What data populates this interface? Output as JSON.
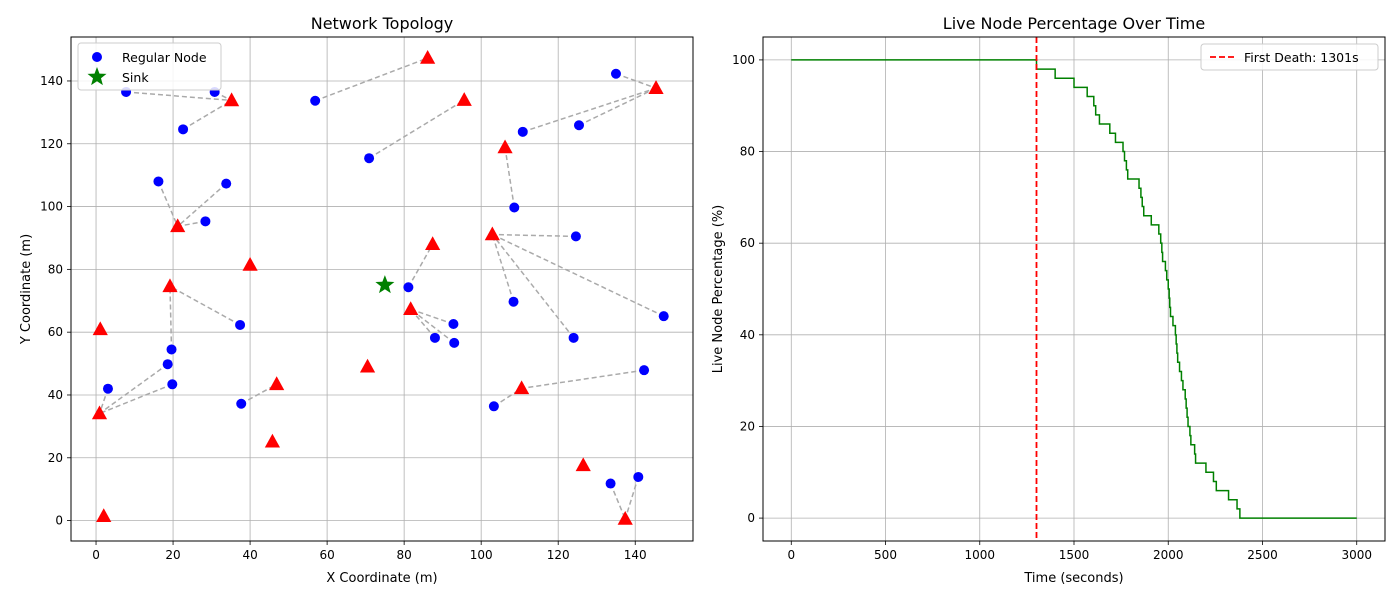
{
  "chart_data": [
    {
      "type": "scatter",
      "title": "Network Topology",
      "xlabel": "X Coordinate (m)",
      "ylabel": "Y Coordinate (m)",
      "xlim": [
        -6.5,
        155
      ],
      "ylim": [
        -6.5,
        154
      ],
      "xticks": [
        0,
        20,
        40,
        60,
        80,
        100,
        120,
        140
      ],
      "yticks": [
        0,
        20,
        40,
        60,
        80,
        100,
        120,
        140
      ],
      "grid": true,
      "legend_position": "top-left",
      "colors": {
        "regular": "#0000ff",
        "cluster_head": "#ff0000",
        "sink": "#008000",
        "link": "#aaaaaa"
      },
      "series": [
        {
          "name": "Regular Node",
          "marker": "circle",
          "points": [
            [
              7.8,
              136.5
            ],
            [
              30.8,
              136.5
            ],
            [
              22.6,
              124.6
            ],
            [
              56.9,
              133.7
            ],
            [
              16.2,
              108.0
            ],
            [
              33.8,
              107.3
            ],
            [
              28.4,
              95.3
            ],
            [
              70.9,
              115.4
            ],
            [
              110.8,
              123.8
            ],
            [
              125.4,
              125.9
            ],
            [
              135.0,
              142.3
            ],
            [
              108.6,
              99.7
            ],
            [
              124.6,
              90.5
            ],
            [
              81.1,
              74.3
            ],
            [
              108.4,
              69.7
            ],
            [
              147.4,
              65.1
            ],
            [
              92.8,
              62.6
            ],
            [
              88.0,
              58.2
            ],
            [
              93.0,
              56.6
            ],
            [
              124.0,
              58.2
            ],
            [
              37.4,
              62.3
            ],
            [
              19.6,
              54.5
            ],
            [
              18.6,
              49.8
            ],
            [
              19.8,
              43.4
            ],
            [
              3.1,
              42.0
            ],
            [
              37.7,
              37.2
            ],
            [
              103.3,
              36.4
            ],
            [
              142.3,
              47.9
            ],
            [
              133.6,
              11.8
            ],
            [
              140.8,
              13.9
            ]
          ]
        },
        {
          "name": "",
          "marker": "triangle",
          "points": [
            [
              35.2,
              133.8
            ],
            [
              86.1,
              147.3
            ],
            [
              95.6,
              133.9
            ],
            [
              145.4,
              137.7
            ],
            [
              106.2,
              118.8
            ],
            [
              21.2,
              93.7
            ],
            [
              40.0,
              81.4
            ],
            [
              87.4,
              88.0
            ],
            [
              102.9,
              91.1
            ],
            [
              19.2,
              74.6
            ],
            [
              81.7,
              67.3
            ],
            [
              1.1,
              60.9
            ],
            [
              70.5,
              49.0
            ],
            [
              46.9,
              43.4
            ],
            [
              110.5,
              42.1
            ],
            [
              0.9,
              34.1
            ],
            [
              45.8,
              25.1
            ],
            [
              126.5,
              17.6
            ],
            [
              2.0,
              1.4
            ],
            [
              137.4,
              0.5
            ]
          ]
        },
        {
          "name": "Sink",
          "marker": "star",
          "points": [
            [
              75.0,
              75.0
            ]
          ]
        }
      ],
      "links": [
        [
          [
            7.8,
            136.5
          ],
          [
            35.2,
            133.8
          ]
        ],
        [
          [
            30.8,
            136.5
          ],
          [
            35.2,
            133.8
          ]
        ],
        [
          [
            22.6,
            124.6
          ],
          [
            35.2,
            133.8
          ]
        ],
        [
          [
            56.9,
            133.7
          ],
          [
            86.1,
            147.3
          ]
        ],
        [
          [
            70.9,
            115.4
          ],
          [
            95.6,
            133.9
          ]
        ],
        [
          [
            110.8,
            123.8
          ],
          [
            145.4,
            137.7
          ]
        ],
        [
          [
            125.4,
            125.9
          ],
          [
            145.4,
            137.7
          ]
        ],
        [
          [
            135.0,
            142.3
          ],
          [
            145.4,
            137.7
          ]
        ],
        [
          [
            108.6,
            99.7
          ],
          [
            106.2,
            118.8
          ]
        ],
        [
          [
            16.2,
            108.0
          ],
          [
            21.2,
            93.7
          ]
        ],
        [
          [
            33.8,
            107.3
          ],
          [
            21.2,
            93.7
          ]
        ],
        [
          [
            28.4,
            95.3
          ],
          [
            21.2,
            93.7
          ]
        ],
        [
          [
            81.1,
            74.3
          ],
          [
            87.4,
            88.0
          ]
        ],
        [
          [
            124.6,
            90.5
          ],
          [
            102.9,
            91.1
          ]
        ],
        [
          [
            108.4,
            69.7
          ],
          [
            102.9,
            91.1
          ]
        ],
        [
          [
            147.4,
            65.1
          ],
          [
            102.9,
            91.1
          ]
        ],
        [
          [
            124.0,
            58.2
          ],
          [
            102.9,
            91.1
          ]
        ],
        [
          [
            37.4,
            62.3
          ],
          [
            19.2,
            74.6
          ]
        ],
        [
          [
            19.6,
            54.5
          ],
          [
            19.2,
            74.6
          ]
        ],
        [
          [
            92.8,
            62.6
          ],
          [
            81.7,
            67.3
          ]
        ],
        [
          [
            88.0,
            58.2
          ],
          [
            81.7,
            67.3
          ]
        ],
        [
          [
            93.0,
            56.6
          ],
          [
            81.7,
            67.3
          ]
        ],
        [
          [
            18.6,
            49.8
          ],
          [
            0.9,
            34.1
          ]
        ],
        [
          [
            19.8,
            43.4
          ],
          [
            0.9,
            34.1
          ]
        ],
        [
          [
            3.1,
            42.0
          ],
          [
            0.9,
            34.1
          ]
        ],
        [
          [
            37.7,
            37.2
          ],
          [
            46.9,
            43.4
          ]
        ],
        [
          [
            103.3,
            36.4
          ],
          [
            110.5,
            42.1
          ]
        ],
        [
          [
            142.3,
            47.9
          ],
          [
            110.5,
            42.1
          ]
        ],
        [
          [
            133.6,
            11.8
          ],
          [
            137.4,
            0.5
          ]
        ],
        [
          [
            140.8,
            13.9
          ],
          [
            137.4,
            0.5
          ]
        ]
      ]
    },
    {
      "type": "line",
      "title": "Live Node Percentage Over Time",
      "xlabel": "Time (seconds)",
      "ylabel": "Live Node Percentage (%)",
      "xlim": [
        -150,
        3150
      ],
      "ylim": [
        -5,
        105
      ],
      "xticks": [
        0,
        500,
        1000,
        1500,
        2000,
        2500,
        3000
      ],
      "yticks": [
        0,
        20,
        40,
        60,
        80,
        100
      ],
      "grid": true,
      "legend_position": "top-right",
      "colors": {
        "line": "#008000",
        "first_death": "#ff0000"
      },
      "series": [
        {
          "name": "",
          "step": true,
          "points": [
            [
              0,
              100
            ],
            [
              1301,
              100
            ],
            [
              1301,
              98
            ],
            [
              1400,
              98
            ],
            [
              1400,
              96
            ],
            [
              1500,
              96
            ],
            [
              1500,
              94
            ],
            [
              1570,
              94
            ],
            [
              1570,
              92
            ],
            [
              1605,
              92
            ],
            [
              1605,
              90
            ],
            [
              1615,
              90
            ],
            [
              1615,
              88
            ],
            [
              1635,
              88
            ],
            [
              1635,
              86
            ],
            [
              1690,
              86
            ],
            [
              1690,
              84
            ],
            [
              1720,
              84
            ],
            [
              1720,
              82
            ],
            [
              1760,
              82
            ],
            [
              1760,
              80
            ],
            [
              1768,
              80
            ],
            [
              1768,
              78
            ],
            [
              1778,
              78
            ],
            [
              1778,
              76
            ],
            [
              1785,
              76
            ],
            [
              1785,
              74
            ],
            [
              1845,
              74
            ],
            [
              1845,
              72
            ],
            [
              1855,
              72
            ],
            [
              1855,
              70
            ],
            [
              1862,
              70
            ],
            [
              1862,
              68
            ],
            [
              1870,
              68
            ],
            [
              1870,
              66
            ],
            [
              1910,
              66
            ],
            [
              1910,
              64
            ],
            [
              1950,
              64
            ],
            [
              1950,
              62
            ],
            [
              1960,
              62
            ],
            [
              1960,
              60
            ],
            [
              1966,
              60
            ],
            [
              1966,
              58
            ],
            [
              1970,
              58
            ],
            [
              1970,
              56
            ],
            [
              1985,
              56
            ],
            [
              1985,
              54
            ],
            [
              1992,
              54
            ],
            [
              1992,
              52
            ],
            [
              2000,
              52
            ],
            [
              2000,
              50
            ],
            [
              2005,
              50
            ],
            [
              2005,
              48
            ],
            [
              2008,
              48
            ],
            [
              2008,
              46
            ],
            [
              2012,
              46
            ],
            [
              2012,
              44
            ],
            [
              2025,
              44
            ],
            [
              2025,
              42
            ],
            [
              2038,
              42
            ],
            [
              2038,
              40
            ],
            [
              2042,
              40
            ],
            [
              2042,
              38
            ],
            [
              2046,
              38
            ],
            [
              2046,
              36
            ],
            [
              2050,
              36
            ],
            [
              2050,
              34
            ],
            [
              2060,
              34
            ],
            [
              2060,
              32
            ],
            [
              2070,
              32
            ],
            [
              2070,
              30
            ],
            [
              2078,
              30
            ],
            [
              2078,
              28
            ],
            [
              2090,
              28
            ],
            [
              2090,
              26
            ],
            [
              2095,
              26
            ],
            [
              2095,
              24
            ],
            [
              2100,
              24
            ],
            [
              2100,
              22
            ],
            [
              2105,
              22
            ],
            [
              2105,
              20
            ],
            [
              2115,
              20
            ],
            [
              2115,
              18
            ],
            [
              2120,
              18
            ],
            [
              2120,
              16
            ],
            [
              2140,
              16
            ],
            [
              2140,
              14
            ],
            [
              2145,
              14
            ],
            [
              2145,
              12
            ],
            [
              2200,
              12
            ],
            [
              2200,
              10
            ],
            [
              2240,
              10
            ],
            [
              2240,
              8
            ],
            [
              2255,
              8
            ],
            [
              2255,
              6
            ],
            [
              2320,
              6
            ],
            [
              2320,
              4
            ],
            [
              2365,
              4
            ],
            [
              2365,
              2
            ],
            [
              2380,
              2
            ],
            [
              2380,
              0
            ],
            [
              3000,
              0
            ]
          ]
        },
        {
          "name": "First Death: 1301s",
          "vline_x": 1301
        }
      ]
    }
  ]
}
